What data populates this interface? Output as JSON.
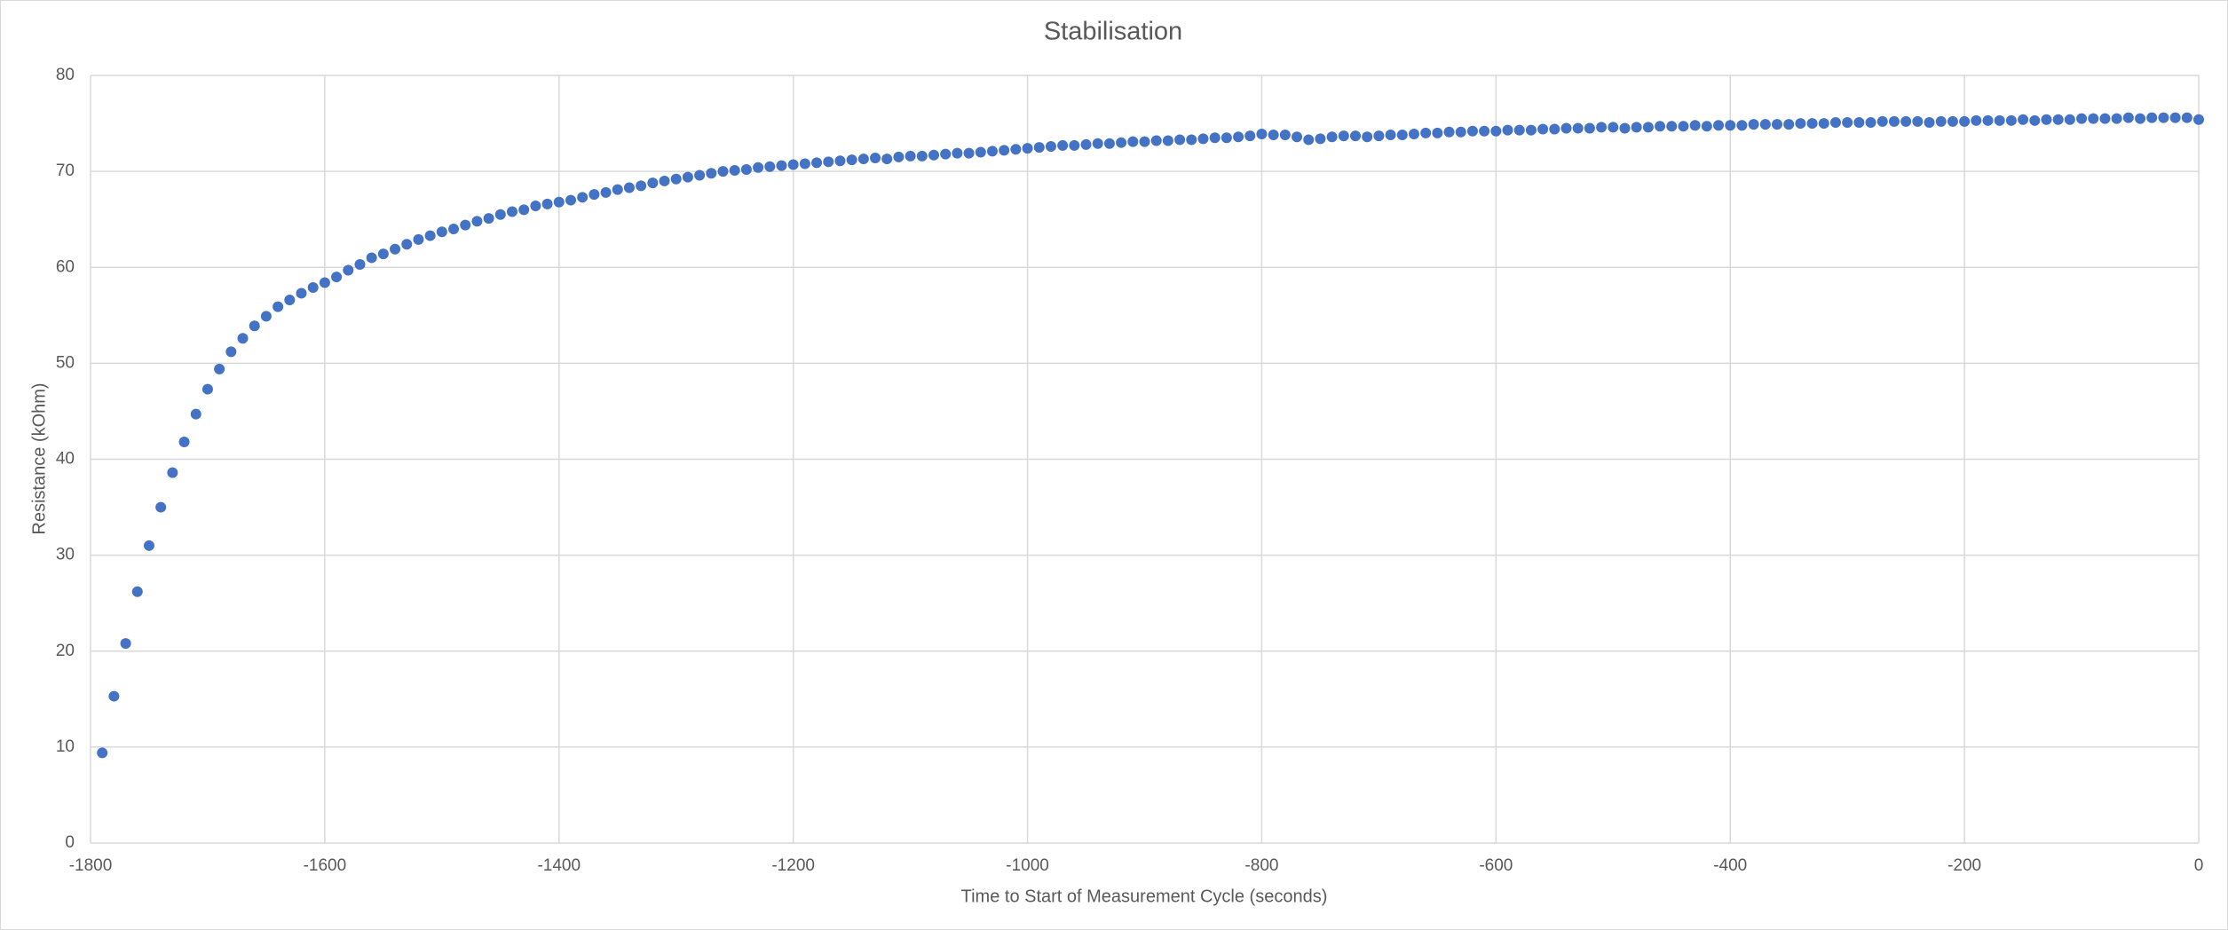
{
  "chart_data": {
    "type": "scatter",
    "title": "Stabilisation",
    "x_label": "Time to Start of Measurement Cycle (seconds)",
    "y_label": "Resistance (kOhm)",
    "xlim": [
      -1800,
      0
    ],
    "xticks": [
      -1800,
      -1600,
      -1400,
      -1200,
      -1000,
      -800,
      -600,
      -400,
      -200,
      0
    ],
    "ylim": [
      0,
      80
    ],
    "yticks": [
      0,
      10,
      20,
      30,
      40,
      50,
      60,
      70,
      80
    ],
    "grid": true,
    "series": [
      {
        "color": "#4472c4",
        "x": [
          -1790,
          -1780,
          -1770,
          -1760,
          -1750,
          -1740,
          -1730,
          -1720,
          -1710,
          -1700,
          -1690,
          -1680,
          -1670,
          -1660,
          -1650,
          -1640,
          -1630,
          -1620,
          -1610,
          -1600,
          -1590,
          -1580,
          -1570,
          -1560,
          -1550,
          -1540,
          -1530,
          -1520,
          -1510,
          -1500,
          -1490,
          -1480,
          -1470,
          -1460,
          -1450,
          -1440,
          -1430,
          -1420,
          -1410,
          -1400,
          -1390,
          -1380,
          -1370,
          -1360,
          -1350,
          -1340,
          -1330,
          -1320,
          -1310,
          -1300,
          -1290,
          -1280,
          -1270,
          -1260,
          -1250,
          -1240,
          -1230,
          -1220,
          -1210,
          -1200,
          -1190,
          -1180,
          -1170,
          -1160,
          -1150,
          -1140,
          -1130,
          -1120,
          -1110,
          -1100,
          -1090,
          -1080,
          -1070,
          -1060,
          -1050,
          -1040,
          -1030,
          -1020,
          -1010,
          -1000,
          -990,
          -980,
          -970,
          -960,
          -950,
          -940,
          -930,
          -920,
          -910,
          -900,
          -890,
          -880,
          -870,
          -860,
          -850,
          -840,
          -830,
          -820,
          -810,
          -800,
          -790,
          -780,
          -770,
          -760,
          -750,
          -740,
          -730,
          -720,
          -710,
          -700,
          -690,
          -680,
          -670,
          -660,
          -650,
          -640,
          -630,
          -620,
          -610,
          -600,
          -590,
          -580,
          -570,
          -560,
          -550,
          -540,
          -530,
          -520,
          -510,
          -500,
          -490,
          -480,
          -470,
          -460,
          -450,
          -440,
          -430,
          -420,
          -410,
          -400,
          -390,
          -380,
          -370,
          -360,
          -350,
          -340,
          -330,
          -320,
          -310,
          -300,
          -290,
          -280,
          -270,
          -260,
          -250,
          -240,
          -230,
          -220,
          -210,
          -200,
          -190,
          -180,
          -170,
          -160,
          -150,
          -140,
          -130,
          -120,
          -110,
          -100,
          -90,
          -80,
          -70,
          -60,
          -50,
          -40,
          -30,
          -20,
          -10,
          0
        ],
        "values": [
          9.4,
          15.3,
          20.8,
          26.2,
          31.0,
          35.0,
          38.6,
          41.8,
          44.7,
          47.3,
          49.4,
          51.2,
          52.6,
          53.9,
          54.9,
          55.9,
          56.6,
          57.3,
          57.9,
          58.4,
          59.0,
          59.7,
          60.3,
          61.0,
          61.4,
          61.9,
          62.4,
          62.9,
          63.3,
          63.7,
          64.0,
          64.4,
          64.8,
          65.1,
          65.5,
          65.8,
          66.0,
          66.4,
          66.6,
          66.8,
          67.0,
          67.3,
          67.6,
          67.8,
          68.1,
          68.3,
          68.5,
          68.8,
          69.0,
          69.2,
          69.4,
          69.6,
          69.8,
          70.0,
          70.1,
          70.2,
          70.4,
          70.5,
          70.6,
          70.7,
          70.8,
          70.9,
          71.0,
          71.1,
          71.2,
          71.3,
          71.4,
          71.3,
          71.5,
          71.6,
          71.6,
          71.7,
          71.8,
          71.9,
          71.9,
          72.0,
          72.1,
          72.2,
          72.3,
          72.4,
          72.5,
          72.6,
          72.7,
          72.7,
          72.8,
          72.9,
          72.9,
          73.0,
          73.1,
          73.1,
          73.2,
          73.2,
          73.3,
          73.3,
          73.4,
          73.5,
          73.5,
          73.6,
          73.7,
          73.9,
          73.8,
          73.8,
          73.6,
          73.3,
          73.4,
          73.6,
          73.7,
          73.7,
          73.6,
          73.7,
          73.8,
          73.8,
          73.9,
          74.0,
          74.0,
          74.1,
          74.1,
          74.2,
          74.2,
          74.2,
          74.3,
          74.3,
          74.3,
          74.4,
          74.4,
          74.5,
          74.5,
          74.5,
          74.6,
          74.6,
          74.5,
          74.6,
          74.6,
          74.7,
          74.7,
          74.7,
          74.8,
          74.7,
          74.8,
          74.8,
          74.8,
          74.9,
          74.9,
          74.9,
          74.9,
          75.0,
          75.0,
          75.0,
          75.1,
          75.1,
          75.1,
          75.1,
          75.2,
          75.2,
          75.2,
          75.2,
          75.1,
          75.2,
          75.2,
          75.2,
          75.3,
          75.3,
          75.3,
          75.3,
          75.4,
          75.3,
          75.4,
          75.4,
          75.4,
          75.5,
          75.5,
          75.5,
          75.5,
          75.6,
          75.5,
          75.6,
          75.6,
          75.6,
          75.6,
          75.4
        ]
      }
    ]
  }
}
